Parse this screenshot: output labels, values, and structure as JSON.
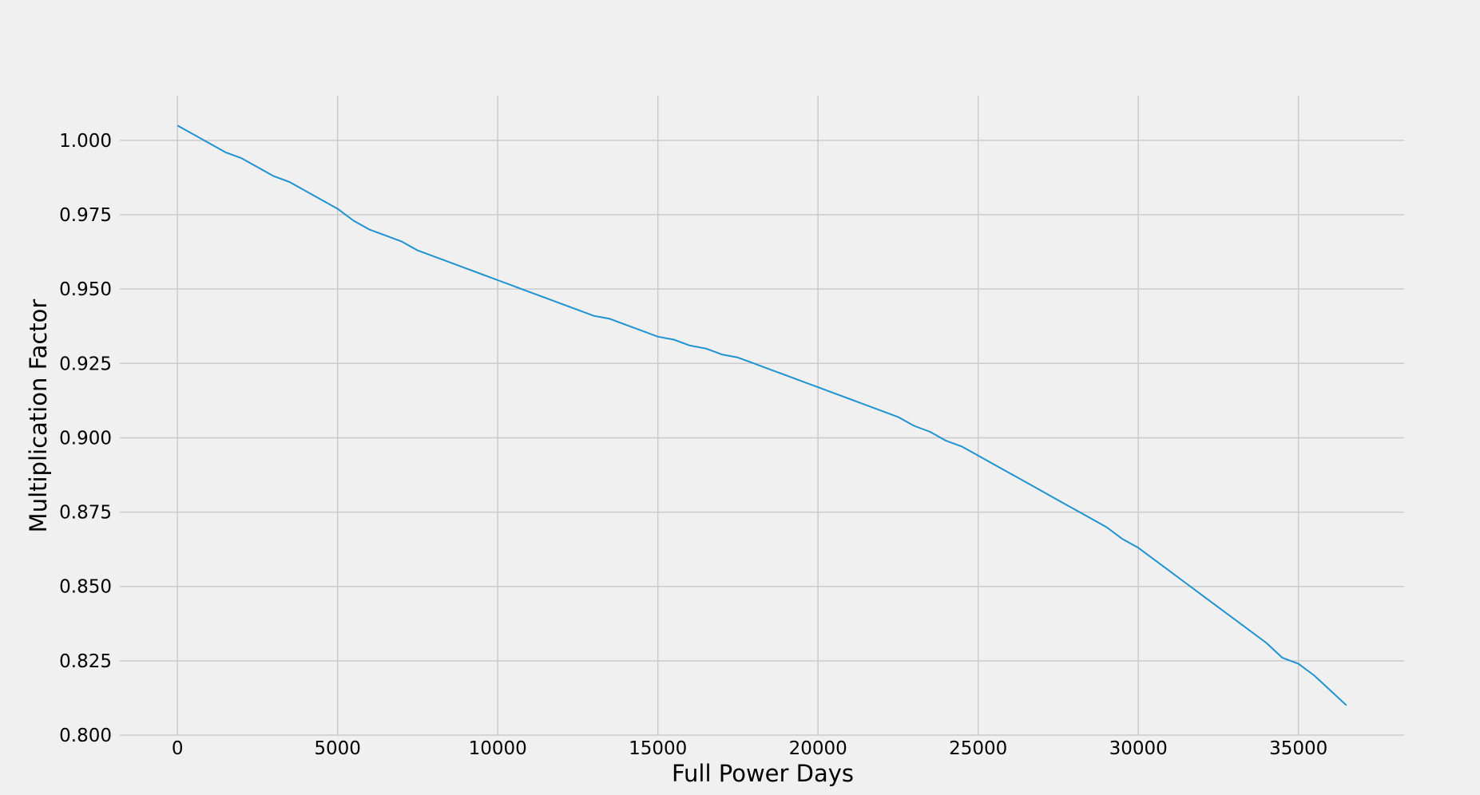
{
  "chart_data": {
    "type": "line",
    "title": "",
    "xlabel": "Full Power Days",
    "ylabel": "Multiplication Factor",
    "xlim": [
      -1800,
      38300
    ],
    "ylim": [
      0.8,
      1.015
    ],
    "xticks": [
      0,
      5000,
      10000,
      15000,
      20000,
      25000,
      30000,
      35000
    ],
    "xtick_labels": [
      "0",
      "5000",
      "10000",
      "15000",
      "20000",
      "25000",
      "30000",
      "35000"
    ],
    "yticks": [
      0.8,
      0.825,
      0.85,
      0.875,
      0.9,
      0.925,
      0.95,
      0.975,
      1.0
    ],
    "ytick_labels": [
      "0.800",
      "0.825",
      "0.850",
      "0.875",
      "0.900",
      "0.925",
      "0.950",
      "0.975",
      "1.000"
    ],
    "grid": true,
    "legend": "none",
    "colors": {
      "background": "#f0f0f0",
      "grid": "#cbcbcb",
      "line": "#1f93d0"
    },
    "series": [
      {
        "x": [
          0,
          500,
          1000,
          1500,
          2000,
          2500,
          3000,
          3500,
          4000,
          4500,
          5000,
          5500,
          6000,
          6500,
          7000,
          7500,
          8000,
          8500,
          9000,
          9500,
          10000,
          10500,
          11000,
          11500,
          12000,
          12500,
          13000,
          13500,
          14000,
          14500,
          15000,
          15500,
          16000,
          16500,
          17000,
          17500,
          18000,
          18500,
          19000,
          19500,
          20000,
          20500,
          21000,
          21500,
          22000,
          22500,
          23000,
          23500,
          24000,
          24500,
          25000,
          25500,
          26000,
          26500,
          27000,
          27500,
          28000,
          28500,
          29000,
          29500,
          30000,
          30500,
          31000,
          31500,
          32000,
          32500,
          33000,
          33500,
          34000,
          34500,
          35000,
          35500,
          36000,
          36500
        ],
        "y": [
          1.005,
          1.002,
          0.999,
          0.996,
          0.994,
          0.991,
          0.988,
          0.986,
          0.983,
          0.98,
          0.977,
          0.973,
          0.97,
          0.968,
          0.966,
          0.963,
          0.961,
          0.959,
          0.957,
          0.955,
          0.953,
          0.951,
          0.949,
          0.947,
          0.945,
          0.943,
          0.941,
          0.94,
          0.938,
          0.936,
          0.934,
          0.933,
          0.931,
          0.93,
          0.928,
          0.927,
          0.925,
          0.923,
          0.921,
          0.919,
          0.917,
          0.915,
          0.913,
          0.911,
          0.909,
          0.907,
          0.904,
          0.902,
          0.899,
          0.897,
          0.894,
          0.891,
          0.888,
          0.885,
          0.882,
          0.879,
          0.876,
          0.873,
          0.87,
          0.866,
          0.863,
          0.859,
          0.855,
          0.851,
          0.847,
          0.843,
          0.839,
          0.835,
          0.831,
          0.826,
          0.824,
          0.82,
          0.815,
          0.81
        ]
      }
    ]
  }
}
